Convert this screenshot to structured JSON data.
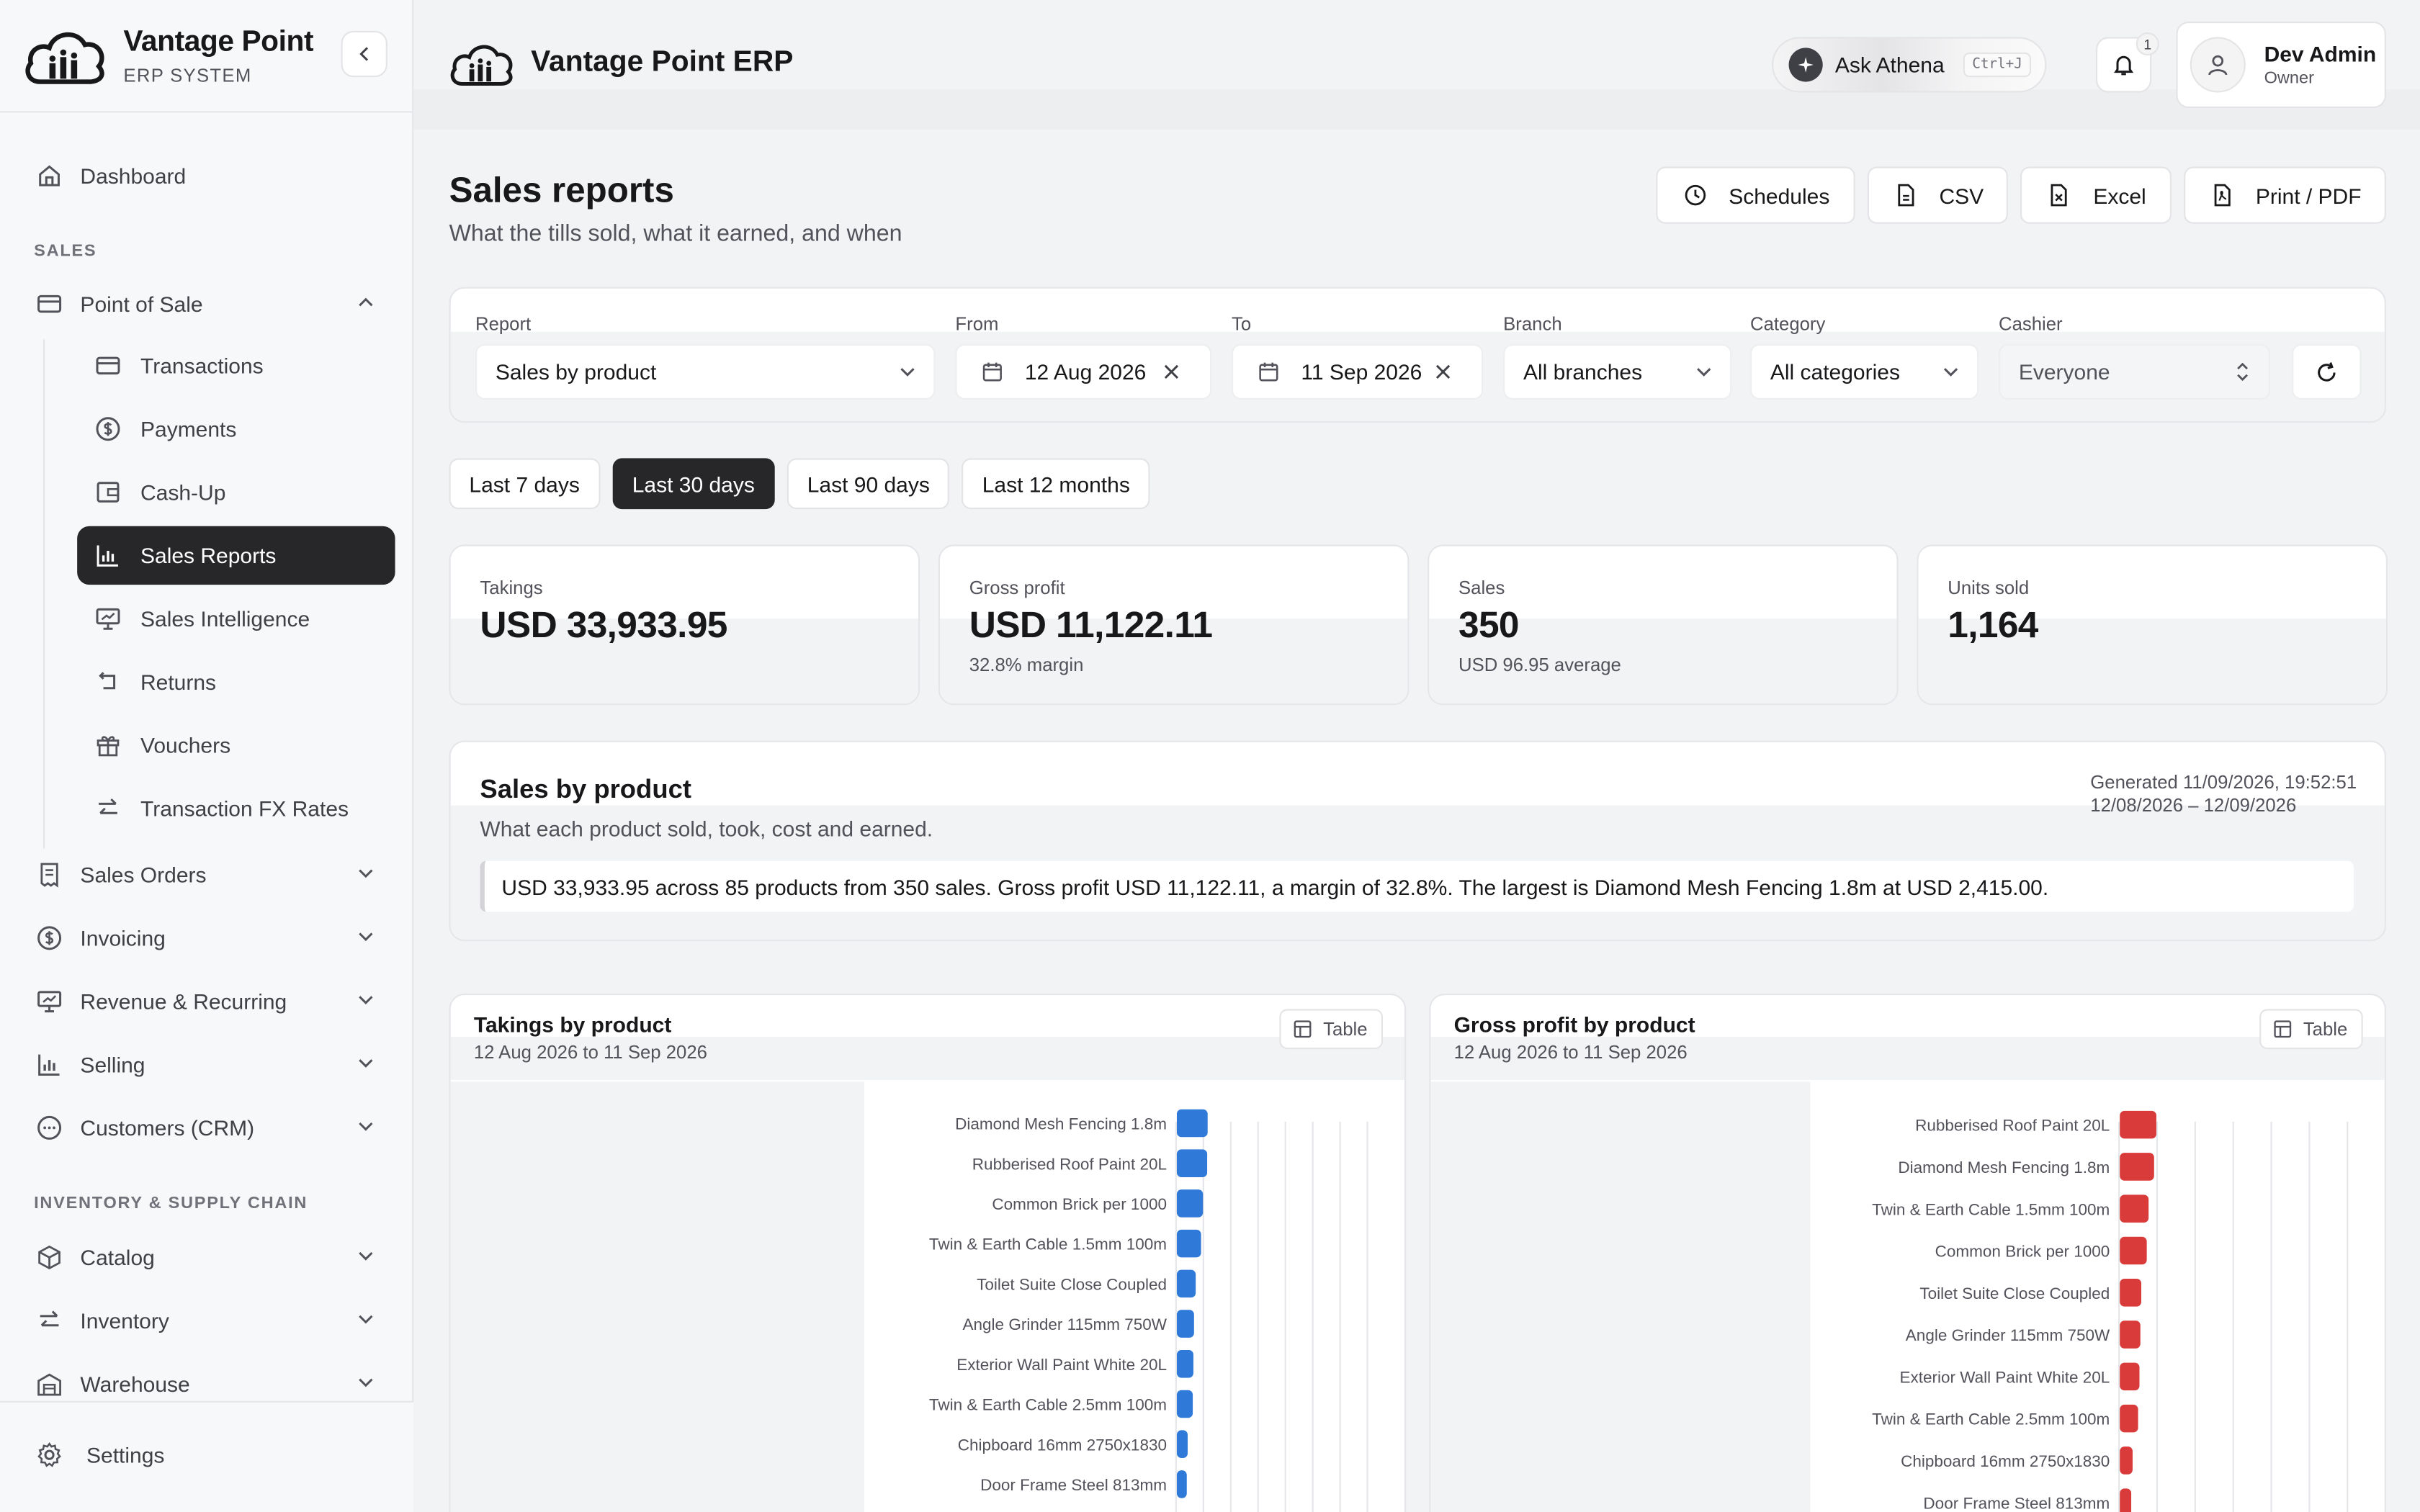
{
  "brand": {
    "title": "Vantage Point",
    "subtitle": "ERP SYSTEM",
    "app_title": "Vantage Point ERP"
  },
  "sidebar": {
    "dashboard": "Dashboard",
    "section_sales": "SALES",
    "point_of_sale": "Point of Sale",
    "pos_items": [
      {
        "label": "Transactions",
        "icon": "card-icon"
      },
      {
        "label": "Payments",
        "icon": "dollar-circle-icon"
      },
      {
        "label": "Cash-Up",
        "icon": "wallet-icon"
      },
      {
        "label": "Sales Reports",
        "icon": "bar-chart-icon",
        "active": true
      },
      {
        "label": "Sales Intelligence",
        "icon": "presentation-icon"
      },
      {
        "label": "Returns",
        "icon": "return-icon"
      },
      {
        "label": "Vouchers",
        "icon": "gift-icon"
      },
      {
        "label": "Transaction FX Rates",
        "icon": "exchange-icon"
      }
    ],
    "groups": [
      {
        "label": "Sales Orders",
        "icon": "receipt-icon"
      },
      {
        "label": "Invoicing",
        "icon": "dollar-circle-icon"
      },
      {
        "label": "Revenue & Recurring",
        "icon": "presentation-icon"
      },
      {
        "label": "Selling",
        "icon": "bar-chart-icon"
      },
      {
        "label": "Customers (CRM)",
        "icon": "chat-icon"
      }
    ],
    "section_inventory": "INVENTORY & SUPPLY CHAIN",
    "inv_groups": [
      {
        "label": "Catalog",
        "icon": "box-icon"
      },
      {
        "label": "Inventory",
        "icon": "exchange-icon"
      },
      {
        "label": "Warehouse",
        "icon": "warehouse-icon"
      }
    ],
    "settings": "Settings"
  },
  "topbar": {
    "ask_label": "Ask Athena",
    "ask_shortcut": "Ctrl+J",
    "notification_count": "1",
    "user_name": "Dev Admin",
    "user_role": "Owner"
  },
  "page": {
    "title": "Sales reports",
    "subtitle": "What the tills sold, what it earned, and when",
    "actions": [
      "Schedules",
      "CSV",
      "Excel",
      "Print / PDF"
    ]
  },
  "filters": {
    "report_label": "Report",
    "report_value": "Sales by product",
    "from_label": "From",
    "from_value": "12 Aug 2026",
    "to_label": "To",
    "to_value": "11 Sep 2026",
    "branch_label": "Branch",
    "branch_value": "All branches",
    "category_label": "Category",
    "category_value": "All categories",
    "cashier_label": "Cashier",
    "cashier_value": "Everyone"
  },
  "ranges": [
    {
      "label": "Last 7 days",
      "active": false
    },
    {
      "label": "Last 30 days",
      "active": true
    },
    {
      "label": "Last 90 days",
      "active": false
    },
    {
      "label": "Last 12 months",
      "active": false
    }
  ],
  "kpis": [
    {
      "label": "Takings",
      "value": "USD 33,933.95",
      "note": ""
    },
    {
      "label": "Gross profit",
      "value": "USD 11,122.11",
      "note": "32.8% margin"
    },
    {
      "label": "Sales",
      "value": "350",
      "note": "USD 96.95 average"
    },
    {
      "label": "Units sold",
      "value": "1,164",
      "note": ""
    }
  ],
  "report": {
    "title": "Sales by product",
    "subtitle": "What each product sold, took, cost and earned.",
    "generated": "Generated 11/09/2026, 19:52:51",
    "period": "12/08/2026 – 12/09/2026",
    "summary": "USD 33,933.95 across 85 products from 350 sales. Gross profit USD 11,122.11, a margin of 32.8%. The largest is Diamond Mesh Fencing 1.8m at USD 2,415.00."
  },
  "table_label": "Table",
  "colors": {
    "takings": "#2f7ad8",
    "profit": "#d93b3b",
    "active": "#27272a"
  },
  "chart_data": [
    {
      "type": "bar",
      "orientation": "horizontal",
      "title": "Takings by product",
      "subtitle": "12 Aug 2026 to 11 Sep 2026",
      "categories": [
        "Diamond Mesh Fencing 1.8m",
        "Rubberised Roof Paint 20L",
        "Common Brick per 1000",
        "Twin & Earth Cable 1.5mm 100m",
        "Toilet Suite Close Coupled",
        "Angle Grinder 115mm 750W",
        "Exterior Wall Paint White 20L",
        "Twin & Earth Cable 2.5mm 100m",
        "Chipboard 16mm 2750x1830",
        "Door Frame Steel 813mm"
      ],
      "values": [
        2415,
        2380,
        2050,
        1900,
        1480,
        1350,
        1300,
        1250,
        850,
        780
      ],
      "xlim": [
        0,
        15000
      ],
      "grid": true
    },
    {
      "type": "bar",
      "orientation": "horizontal",
      "title": "Gross profit by product",
      "subtitle": "12 Aug 2026 to 11 Sep 2026",
      "categories": [
        "Rubberised Roof Paint 20L",
        "Diamond Mesh Fencing 1.8m",
        "Twin & Earth Cable 1.5mm 100m",
        "Common Brick per 1000",
        "Toilet Suite Close Coupled",
        "Angle Grinder 115mm 750W",
        "Exterior Wall Paint White 20L",
        "Twin & Earth Cable 2.5mm 100m",
        "Chipboard 16mm 2750x1830",
        "Door Frame Steel 813mm"
      ],
      "values": [
        800,
        750,
        630,
        590,
        470,
        450,
        430,
        400,
        280,
        250
      ],
      "xlim": [
        0,
        5000
      ],
      "grid": true
    }
  ]
}
